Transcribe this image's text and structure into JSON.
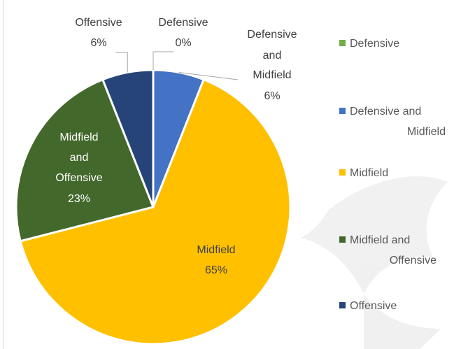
{
  "chart_data": {
    "type": "pie",
    "categories": [
      "Defensive",
      "Defensive and Midfield",
      "Midfield",
      "Midfield and Offensive",
      "Offensive"
    ],
    "values": [
      0,
      6,
      65,
      23,
      6
    ],
    "value_labels": [
      "0%",
      "6%",
      "65%",
      "23%",
      "6%"
    ],
    "colors": [
      "#70ad47",
      "#4472c4",
      "#ffc000",
      "#43682b",
      "#264478"
    ],
    "legend": {
      "placement": "right",
      "entries": [
        "Defensive",
        "Defensive and Midfield",
        "Midfield",
        "Midfield and Offensive",
        "Offensive"
      ]
    },
    "title": ""
  }
}
